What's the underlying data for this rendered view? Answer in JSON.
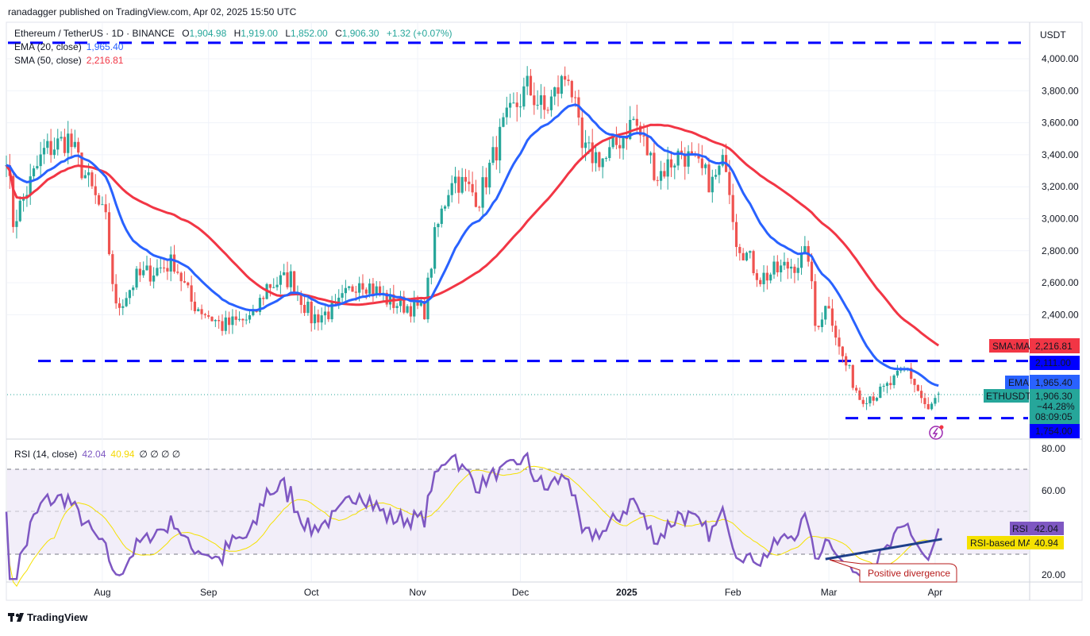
{
  "header": {
    "published": "ranadagger published on TradingView.com, Apr 02, 2025 15:50 UTC",
    "symbol": "Ethereum / TetherUS · 1D · BINANCE",
    "o_label": "O",
    "o": "1,904.98",
    "h_label": "H",
    "h": "1,919.00",
    "l_label": "L",
    "l": "1,852.00",
    "c_label": "C",
    "c": "1,906.30",
    "change": "+1.32 (+0.07%)",
    "ema_label": "EMA (20, close)",
    "ema_value": "1,965.40",
    "sma_label": "SMA (50, close)",
    "sma_value": "2,216.81",
    "rsi_label": "RSI (14, close)",
    "rsi_value": "42.04",
    "rsi_ma_value": "40.94",
    "rsi_extra": "∅  ∅  ∅  ∅"
  },
  "colors": {
    "up": "#26a69a",
    "down": "#ef5350",
    "ema": "#2962ff",
    "sma": "#f23645",
    "levels": "#0000ff",
    "rsi": "#7e57c2",
    "rsi_ma": "#f5e100",
    "trendline": "#1e3f8a",
    "annotation": "#b71c1c"
  },
  "footer": {
    "brand": "TradingView"
  },
  "chart_data": [
    {
      "type": "candlestick",
      "title": "Ethereum / TetherUS · 1D · BINANCE",
      "ylabel": "USDT",
      "ylim": [
        1650,
        4200
      ],
      "y_ticks": [
        "2,400.00",
        "2,600.00",
        "2,800.00",
        "3,000.00",
        "3,200.00",
        "3,400.00",
        "3,600.00",
        "3,800.00",
        "4,000.00"
      ],
      "x_ticks": [
        "Aug",
        "Sep",
        "Oct",
        "Nov",
        "Dec",
        "2025",
        "Feb",
        "Mar",
        "Apr"
      ],
      "x_tick_dates": [
        "2024-08-01",
        "2024-09-01",
        "2024-10-01",
        "2024-11-01",
        "2024-12-01",
        "2025-01-01",
        "2025-02-01",
        "2025-03-01",
        "2025-04-01"
      ],
      "grid": true,
      "approx_closes": [
        [
          "2024-07-04",
          3420
        ],
        [
          "2024-07-06",
          2980
        ],
        [
          "2024-07-15",
          3420
        ],
        [
          "2024-07-22",
          3500
        ],
        [
          "2024-07-27",
          3270
        ],
        [
          "2024-08-02",
          2980
        ],
        [
          "2024-08-05",
          2430
        ],
        [
          "2024-08-11",
          2630
        ],
        [
          "2024-08-22",
          2730
        ],
        [
          "2024-08-27",
          2480
        ],
        [
          "2024-09-05",
          2330
        ],
        [
          "2024-09-14",
          2380
        ],
        [
          "2024-09-18",
          2580
        ],
        [
          "2024-09-25",
          2630
        ],
        [
          "2024-10-01",
          2380
        ],
        [
          "2024-10-08",
          2430
        ],
        [
          "2024-10-15",
          2630
        ],
        [
          "2024-10-24",
          2480
        ],
        [
          "2024-11-03",
          2430
        ],
        [
          "2024-11-06",
          2880
        ],
        [
          "2024-11-11",
          3270
        ],
        [
          "2024-11-19",
          3130
        ],
        [
          "2024-11-26",
          3570
        ],
        [
          "2024-12-03",
          3820
        ],
        [
          "2024-12-08",
          3670
        ],
        [
          "2024-12-15",
          3920
        ],
        [
          "2024-12-19",
          3420
        ],
        [
          "2024-12-26",
          3370
        ],
        [
          "2025-01-03",
          3620
        ],
        [
          "2025-01-10",
          3270
        ],
        [
          "2025-01-17",
          3420
        ],
        [
          "2025-01-26",
          3220
        ],
        [
          "2025-01-30",
          3370
        ],
        [
          "2025-02-02",
          2880
        ],
        [
          "2025-02-09",
          2630
        ],
        [
          "2025-02-20",
          2730
        ],
        [
          "2025-02-23",
          2780
        ],
        [
          "2025-02-25",
          2330
        ],
        [
          "2025-03-01",
          2480
        ],
        [
          "2025-03-04",
          2185
        ],
        [
          "2025-03-10",
          1885
        ],
        [
          "2025-03-16",
          1910
        ],
        [
          "2025-03-24",
          2060
        ],
        [
          "2025-03-30",
          1790
        ],
        [
          "2025-04-02",
          1906.3
        ]
      ],
      "last_candle": {
        "open": 1904.98,
        "high": 1919.0,
        "low": 1852.0,
        "close": 1906.3
      },
      "horizontal_levels": [
        {
          "value": 4100,
          "label": ""
        },
        {
          "value": 2111,
          "label": "2,111.00"
        },
        {
          "value": 1754,
          "label": "1,754.00"
        }
      ],
      "series": [
        {
          "name": "EMA (20, close)",
          "last": 1965.4,
          "tag": "EMA"
        },
        {
          "name": "SMA (50, close)",
          "last": 2216.81,
          "tag": "SMA:MA"
        }
      ],
      "price_tag": {
        "name": "ETHUSDT",
        "value": "1,906.30",
        "change": "−44.28%",
        "countdown": "08:09:05"
      },
      "sma_tag": {
        "label": "SMA:MA",
        "value": "2,216.81"
      },
      "ema_tag": {
        "label": "EMA",
        "value": "1,965.40"
      }
    },
    {
      "type": "line",
      "title": "RSI (14, close)",
      "ylim": [
        15,
        85
      ],
      "y_ticks": [
        "80.00",
        "60.00",
        "20.00"
      ],
      "bands": [
        30,
        70
      ],
      "series": [
        {
          "name": "RSI",
          "last": 42.04
        },
        {
          "name": "RSI-based MA",
          "last": 40.94
        }
      ],
      "rsi_tag": {
        "label": "RSI",
        "value": "42.04"
      },
      "rsi_ma_tag": {
        "label": "RSI-based MA",
        "value": "40.94"
      },
      "trendline": {
        "from": [
          "2025-02-28",
          27.5
        ],
        "to": [
          "2025-04-03",
          37
        ]
      },
      "annotation": "Positive divergence"
    }
  ]
}
